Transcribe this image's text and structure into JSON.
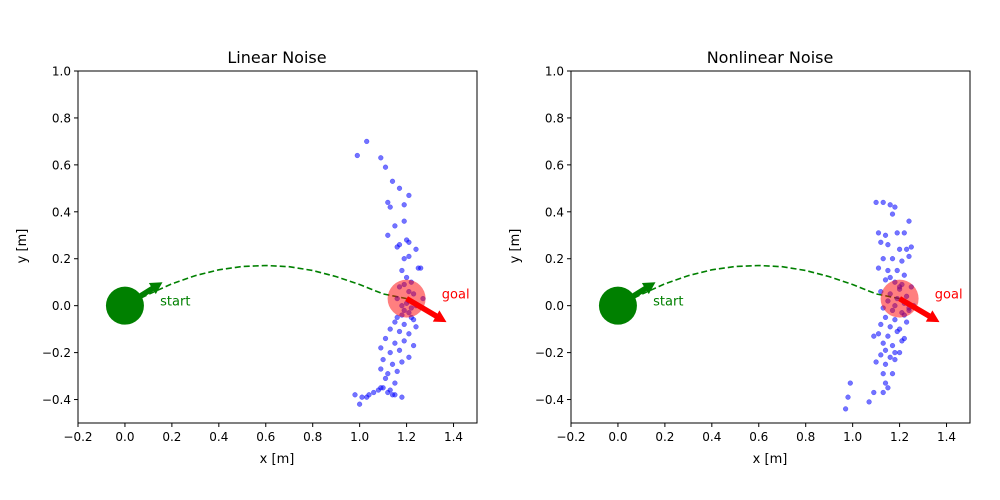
{
  "chart_data": [
    {
      "type": "scatter",
      "title": "Linear Noise",
      "xlabel": "x [m]",
      "ylabel": "y [m]",
      "xlim": [
        -0.2,
        1.5
      ],
      "ylim": [
        -0.5,
        1.0
      ],
      "xticks": [
        -0.2,
        0.0,
        0.2,
        0.4,
        0.6,
        0.8,
        1.0,
        1.2,
        1.4
      ],
      "xtick_labels": [
        "−0.2",
        "0.0",
        "0.2",
        "0.4",
        "0.6",
        "0.8",
        "1.0",
        "1.2",
        "1.4"
      ],
      "yticks": [
        -0.4,
        -0.2,
        0.0,
        0.2,
        0.4,
        0.6,
        0.8,
        1.0
      ],
      "ytick_labels": [
        "−0.4",
        "−0.2",
        "0.0",
        "0.2",
        "0.4",
        "0.6",
        "0.8",
        "1.0"
      ],
      "grid": false,
      "start": {
        "x": 0.0,
        "y": 0.0,
        "label": "start",
        "color": "#008000",
        "arrow_to": [
          0.16,
          0.1
        ]
      },
      "goal": {
        "x": 1.2,
        "y": 0.03,
        "label": "goal",
        "color": "#ff0000",
        "arrow_to": [
          1.37,
          -0.07
        ]
      },
      "path": {
        "color": "#008000",
        "style": "dashed",
        "x": [
          0.0,
          0.1,
          0.2,
          0.3,
          0.4,
          0.5,
          0.6,
          0.7,
          0.8,
          0.9,
          1.0,
          1.1,
          1.2
        ],
        "y": [
          0.0,
          0.048,
          0.093,
          0.128,
          0.153,
          0.167,
          0.171,
          0.166,
          0.15,
          0.124,
          0.09,
          0.05,
          0.03
        ]
      },
      "scatter": {
        "color": "#0000ff",
        "x": [
          0.99,
          1.03,
          1.09,
          1.11,
          1.14,
          1.12,
          1.17,
          1.19,
          1.13,
          1.15,
          1.19,
          1.21,
          1.2,
          1.17,
          1.21,
          1.12,
          1.16,
          1.19,
          1.21,
          1.24,
          1.26,
          1.18,
          1.2,
          1.25,
          1.22,
          1.17,
          1.19,
          1.21,
          1.23,
          1.27,
          1.16,
          1.2,
          1.22,
          1.24,
          1.19,
          1.21,
          1.16,
          1.18,
          1.22,
          1.15,
          1.19,
          1.23,
          1.13,
          1.17,
          1.21,
          1.24,
          1.11,
          1.15,
          1.19,
          1.23,
          1.09,
          1.13,
          1.17,
          1.21,
          1.1,
          1.14,
          1.18,
          1.09,
          1.12,
          1.16,
          1.11,
          1.15,
          1.1,
          1.13,
          1.06,
          1.09,
          1.14,
          1.04,
          1.08,
          1.01,
          1.03,
          0.98,
          1.0,
          1.12,
          1.15,
          1.18,
          1.18,
          1.21
        ],
        "y": [
          0.64,
          0.7,
          0.63,
          0.59,
          0.53,
          0.44,
          0.5,
          0.43,
          0.42,
          0.34,
          0.36,
          0.47,
          0.28,
          0.26,
          0.27,
          0.3,
          0.25,
          0.2,
          0.21,
          0.24,
          0.16,
          0.15,
          0.12,
          0.16,
          0.1,
          0.08,
          0.09,
          0.06,
          0.05,
          0.03,
          0.03,
          0.01,
          -0.01,
          0.0,
          -0.02,
          -0.03,
          -0.05,
          -0.04,
          -0.05,
          -0.07,
          -0.08,
          -0.06,
          -0.1,
          -0.11,
          -0.12,
          -0.09,
          -0.14,
          -0.16,
          -0.15,
          -0.17,
          -0.18,
          -0.2,
          -0.19,
          -0.22,
          -0.23,
          -0.25,
          -0.24,
          -0.27,
          -0.29,
          -0.28,
          -0.31,
          -0.33,
          -0.35,
          -0.36,
          -0.37,
          -0.35,
          -0.38,
          -0.38,
          -0.36,
          -0.39,
          -0.39,
          -0.38,
          -0.42,
          -0.37,
          -0.38,
          -0.39,
          0.0,
          0.02
        ]
      }
    },
    {
      "type": "scatter",
      "title": "Nonlinear Noise",
      "xlabel": "x [m]",
      "ylabel": "y [m]",
      "xlim": [
        -0.2,
        1.5
      ],
      "ylim": [
        -0.5,
        1.0
      ],
      "xticks": [
        -0.2,
        0.0,
        0.2,
        0.4,
        0.6,
        0.8,
        1.0,
        1.2,
        1.4
      ],
      "xtick_labels": [
        "−0.2",
        "0.0",
        "0.2",
        "0.4",
        "0.6",
        "0.8",
        "1.0",
        "1.2",
        "1.4"
      ],
      "yticks": [
        -0.4,
        -0.2,
        0.0,
        0.2,
        0.4,
        0.6,
        0.8,
        1.0
      ],
      "ytick_labels": [
        "−0.4",
        "−0.2",
        "0.0",
        "0.2",
        "0.4",
        "0.6",
        "0.8",
        "1.0"
      ],
      "grid": false,
      "start": {
        "x": 0.0,
        "y": 0.0,
        "label": "start",
        "color": "#008000",
        "arrow_to": [
          0.16,
          0.1
        ]
      },
      "goal": {
        "x": 1.2,
        "y": 0.03,
        "label": "goal",
        "color": "#ff0000",
        "arrow_to": [
          1.37,
          -0.07
        ]
      },
      "path": {
        "color": "#008000",
        "style": "dashed",
        "x": [
          0.0,
          0.1,
          0.2,
          0.3,
          0.4,
          0.5,
          0.6,
          0.7,
          0.8,
          0.9,
          1.0,
          1.1,
          1.2
        ],
        "y": [
          0.0,
          0.048,
          0.093,
          0.128,
          0.153,
          0.167,
          0.171,
          0.166,
          0.15,
          0.124,
          0.09,
          0.05,
          0.03
        ]
      },
      "scatter": {
        "color": "#0000ff",
        "x": [
          1.1,
          1.13,
          1.16,
          1.18,
          1.17,
          1.11,
          1.14,
          1.19,
          1.22,
          1.24,
          1.12,
          1.15,
          1.2,
          1.23,
          1.25,
          1.13,
          1.17,
          1.21,
          1.24,
          1.11,
          1.15,
          1.19,
          1.22,
          1.14,
          1.18,
          1.21,
          1.25,
          1.12,
          1.16,
          1.2,
          1.23,
          1.15,
          1.19,
          1.22,
          1.26,
          1.13,
          1.17,
          1.21,
          1.24,
          1.14,
          1.18,
          1.22,
          1.12,
          1.16,
          1.2,
          1.23,
          1.11,
          1.15,
          1.19,
          1.22,
          1.13,
          1.17,
          1.21,
          1.09,
          1.14,
          1.18,
          1.12,
          1.16,
          1.2,
          1.1,
          1.14,
          1.18,
          1.13,
          1.17,
          1.14,
          1.15,
          1.13,
          1.09,
          1.07,
          0.99,
          0.98,
          0.97,
          1.16,
          1.2,
          1.24,
          1.18
        ],
        "y": [
          0.44,
          0.44,
          0.43,
          0.42,
          0.39,
          0.31,
          0.3,
          0.31,
          0.31,
          0.36,
          0.27,
          0.26,
          0.24,
          0.24,
          0.25,
          0.2,
          0.2,
          0.19,
          0.21,
          0.16,
          0.15,
          0.15,
          0.13,
          0.11,
          0.1,
          0.09,
          0.08,
          0.06,
          0.05,
          0.07,
          0.04,
          0.02,
          0.03,
          0.01,
          0.0,
          -0.01,
          -0.02,
          -0.03,
          -0.01,
          -0.05,
          -0.06,
          -0.04,
          -0.08,
          -0.09,
          -0.1,
          -0.07,
          -0.12,
          -0.13,
          -0.11,
          -0.14,
          -0.16,
          -0.17,
          -0.15,
          -0.13,
          -0.19,
          -0.2,
          -0.21,
          -0.22,
          -0.2,
          -0.24,
          -0.25,
          -0.23,
          -0.29,
          -0.29,
          -0.33,
          -0.35,
          -0.37,
          -0.37,
          -0.41,
          -0.33,
          -0.39,
          -0.44,
          0.12,
          0.08,
          -0.02,
          0.0
        ]
      }
    }
  ]
}
